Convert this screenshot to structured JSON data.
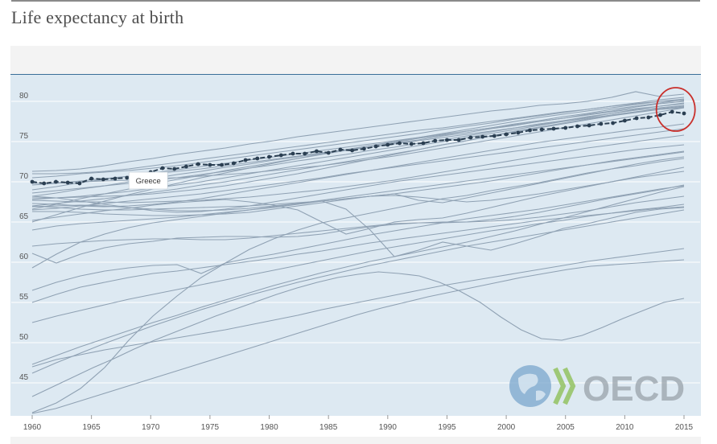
{
  "title": "Life expectancy at birth",
  "logo_text": "OECD",
  "chart_data": {
    "type": "line",
    "title": "Life expectancy at birth",
    "xlabel": "",
    "ylabel": "",
    "xlim": [
      1960,
      2015
    ],
    "ylim": [
      41,
      83
    ],
    "x_ticks": [
      1960,
      1965,
      1970,
      1975,
      1980,
      1985,
      1990,
      1995,
      2000,
      2005,
      2010,
      2015
    ],
    "y_ticks": [
      45,
      50,
      55,
      60,
      65,
      70,
      75,
      80
    ],
    "grid": true,
    "highlight_color": "#2b3f52",
    "background_color": "#dde9f2",
    "line_color": "#8fa1b3",
    "annotation_circle_color": "#c9302c",
    "highlight_label": "Greece",
    "highlight": {
      "x": [
        1960,
        1961,
        1962,
        1963,
        1964,
        1965,
        1966,
        1967,
        1968,
        1969,
        1970,
        1971,
        1972,
        1973,
        1974,
        1975,
        1976,
        1977,
        1978,
        1979,
        1980,
        1981,
        1982,
        1983,
        1984,
        1985,
        1986,
        1987,
        1988,
        1989,
        1990,
        1991,
        1992,
        1993,
        1994,
        1995,
        1996,
        1997,
        1998,
        1999,
        2000,
        2001,
        2002,
        2003,
        2004,
        2005,
        2006,
        2007,
        2008,
        2009,
        2010,
        2011,
        2012,
        2013,
        2014,
        2015
      ],
      "values": [
        70.0,
        69.8,
        70.0,
        69.9,
        69.8,
        70.4,
        70.3,
        70.4,
        70.5,
        70.9,
        71.2,
        71.7,
        71.6,
        71.9,
        72.2,
        72.1,
        72.1,
        72.3,
        72.7,
        72.9,
        73.1,
        73.3,
        73.5,
        73.5,
        73.8,
        73.6,
        74.0,
        73.9,
        74.1,
        74.4,
        74.6,
        74.8,
        74.7,
        74.8,
        75.1,
        75.2,
        75.2,
        75.5,
        75.6,
        75.7,
        75.9,
        76.1,
        76.4,
        76.5,
        76.6,
        76.7,
        76.9,
        77.0,
        77.2,
        77.3,
        77.6,
        77.9,
        78.0,
        78.3,
        78.7,
        78.5
      ]
    },
    "series": [
      {
        "values": [
          71.3,
          71.4,
          71.6,
          72.0,
          72.5,
          72.9,
          73.4,
          73.8,
          74.2,
          74.7,
          75.1,
          75.6,
          76.0,
          76.4,
          76.8,
          77.2,
          77.6,
          78.0,
          78.4,
          78.8,
          79.1,
          79.5,
          79.7,
          80.0,
          80.5,
          81.2,
          80.6,
          80.9
        ]
      },
      {
        "values": [
          71.0,
          71.0,
          71.1,
          71.3,
          71.6,
          72.0,
          72.4,
          72.8,
          73.2,
          73.6,
          74.0,
          74.4,
          74.8,
          75.2,
          75.6,
          76.0,
          76.4,
          76.7,
          77.1,
          77.5,
          77.9,
          78.3,
          78.7,
          79.0,
          79.4,
          79.7,
          80.0,
          80.1
        ]
      },
      {
        "values": [
          70.5,
          70.7,
          71.0,
          71.2,
          71.4,
          71.7,
          72.0,
          72.4,
          72.8,
          73.2,
          73.6,
          74.0,
          74.4,
          74.8,
          75.2,
          75.6,
          76.0,
          76.5,
          76.9,
          77.3,
          77.8,
          78.2,
          78.6,
          79.0,
          79.4,
          79.8,
          80.2,
          80.5
        ]
      },
      {
        "values": [
          69.0,
          69.4,
          69.9,
          70.3,
          70.7,
          71.1,
          71.5,
          71.9,
          72.3,
          72.7,
          73.1,
          73.5,
          73.9,
          74.3,
          74.7,
          75.1,
          75.5,
          75.9,
          76.3,
          76.7,
          77.1,
          77.5,
          77.9,
          78.3,
          78.7,
          79.1,
          79.4,
          79.7
        ]
      },
      {
        "values": [
          69.6,
          69.8,
          70.1,
          70.4,
          70.7,
          71.0,
          71.3,
          71.6,
          72.0,
          72.4,
          72.8,
          73.2,
          73.6,
          74.0,
          74.3,
          74.7,
          75.1,
          75.5,
          75.9,
          76.3,
          76.7,
          77.1,
          77.5,
          77.9,
          78.3,
          78.7,
          79.0,
          79.3
        ]
      },
      {
        "values": [
          68.2,
          68.6,
          69.1,
          69.5,
          70.0,
          70.4,
          70.9,
          71.3,
          71.8,
          72.2,
          72.7,
          73.1,
          73.6,
          74.0,
          74.5,
          74.9,
          75.4,
          75.8,
          76.3,
          76.7,
          77.2,
          77.6,
          78.1,
          78.5,
          79.0,
          79.4,
          79.8,
          80.2
        ]
      },
      {
        "values": [
          68.6,
          68.9,
          69.2,
          69.5,
          69.8,
          70.2,
          70.5,
          70.9,
          71.3,
          71.7,
          72.1,
          72.6,
          73.0,
          73.4,
          73.9,
          74.3,
          74.8,
          75.2,
          75.7,
          76.2,
          76.7,
          77.2,
          77.6,
          78.1,
          78.5,
          78.9,
          79.2,
          79.5
        ]
      },
      {
        "values": [
          69.8,
          69.9,
          70.0,
          70.1,
          70.2,
          70.4,
          70.5,
          70.7,
          70.9,
          71.1,
          71.4,
          71.7,
          72.0,
          72.4,
          72.8,
          73.2,
          73.7,
          74.2,
          74.7,
          75.2,
          75.7,
          76.2,
          76.7,
          77.2,
          77.7,
          78.2,
          78.7,
          79.2
        ]
      },
      {
        "values": [
          66.6,
          67.2,
          67.9,
          68.5,
          69.1,
          69.7,
          70.3,
          70.8,
          71.4,
          71.9,
          72.4,
          72.9,
          73.4,
          73.9,
          74.3,
          74.8,
          75.2,
          75.7,
          76.1,
          76.6,
          77.0,
          77.5,
          77.9,
          78.4,
          78.8,
          79.3,
          79.7,
          80.0
        ]
      },
      {
        "values": [
          67.8,
          68.0,
          68.2,
          68.5,
          68.8,
          69.2,
          69.6,
          70.0,
          70.5,
          71.0,
          71.5,
          72.0,
          72.5,
          73.0,
          73.5,
          74.0,
          74.5,
          75.0,
          75.5,
          76.0,
          76.5,
          77.0,
          77.5,
          78.0,
          78.5,
          79.0,
          79.4,
          79.8
        ]
      },
      {
        "values": [
          67.0,
          67.3,
          67.6,
          67.9,
          68.3,
          68.7,
          69.1,
          69.6,
          70.0,
          70.5,
          71.0,
          71.5,
          72.0,
          72.5,
          73.0,
          73.5,
          74.0,
          74.6,
          75.1,
          75.7,
          76.2,
          76.7,
          77.2,
          77.7,
          78.2,
          78.6,
          79.0,
          79.2
        ]
      },
      {
        "values": [
          65.0,
          65.9,
          66.8,
          67.6,
          68.4,
          69.1,
          69.8,
          70.5,
          71.1,
          71.7,
          72.3,
          72.9,
          73.5,
          74.0,
          74.5,
          75.0,
          75.5,
          76.0,
          76.5,
          77.0,
          77.5,
          78.0,
          78.4,
          78.8,
          79.2,
          79.6,
          80.0,
          80.3
        ]
      },
      {
        "values": [
          68.0,
          68.0,
          68.1,
          68.2,
          68.3,
          68.5,
          68.8,
          69.1,
          69.5,
          70.0,
          70.5,
          71.0,
          71.6,
          72.2,
          72.8,
          73.4,
          74.0,
          74.6,
          75.1,
          75.7,
          76.3,
          76.8,
          77.3,
          77.8,
          78.3,
          78.7,
          79.1,
          79.4
        ]
      },
      {
        "values": [
          66.5,
          66.7,
          67.0,
          67.3,
          67.6,
          67.9,
          68.2,
          68.5,
          68.9,
          69.3,
          69.7,
          70.1,
          70.5,
          71.0,
          71.4,
          71.9,
          72.4,
          72.9,
          73.4,
          73.9,
          74.4,
          74.9,
          75.3,
          75.7,
          76.1,
          76.5,
          76.8,
          77.2
        ]
      },
      {
        "values": [
          67.3,
          67.2,
          67.0,
          66.9,
          67.0,
          67.2,
          67.5,
          67.9,
          68.4,
          68.9,
          69.4,
          69.9,
          70.4,
          70.9,
          71.4,
          71.8,
          72.2,
          72.6,
          73.0,
          73.4,
          73.8,
          74.2,
          74.6,
          75.0,
          75.4,
          75.8,
          76.2,
          76.6
        ]
      },
      {
        "values": [
          67.7,
          67.6,
          67.5,
          67.5,
          67.4,
          67.5,
          67.6,
          67.7,
          67.9,
          68.1,
          68.4,
          68.7,
          69.0,
          69.4,
          69.8,
          70.2,
          70.7,
          71.2,
          71.7,
          72.2,
          72.7,
          73.2,
          73.7,
          74.2,
          74.6,
          75.0,
          75.4,
          75.8
        ]
      },
      {
        "values": [
          67.0,
          66.8,
          66.6,
          66.5,
          66.5,
          66.6,
          66.7,
          66.8,
          66.9,
          67.0,
          67.2,
          67.4,
          67.6,
          67.9,
          68.2,
          68.5,
          68.9,
          69.3,
          69.7,
          70.1,
          70.6,
          71.1,
          71.6,
          72.1,
          72.6,
          73.0,
          73.4,
          73.8
        ]
      },
      {
        "values": [
          68.2,
          68.0,
          67.6,
          67.2,
          66.8,
          66.4,
          66.2,
          66.3,
          66.6,
          67.0,
          67.5,
          68.0,
          68.5,
          69.0,
          69.5,
          70.0,
          70.4,
          70.8,
          71.2,
          71.6,
          72.0,
          72.4,
          72.8,
          73.2,
          73.6,
          74.0,
          74.3,
          74.6
        ]
      },
      {
        "values": [
          66.3,
          66.3,
          66.2,
          66.0,
          65.9,
          65.8,
          65.8,
          65.9,
          66.0,
          66.2,
          66.6,
          67.0,
          67.4,
          67.8,
          68.2,
          68.5,
          67.7,
          67.4,
          68.0,
          68.6,
          69.2,
          69.8,
          70.4,
          71.0,
          71.6,
          72.2,
          72.7,
          73.1
        ]
      },
      {
        "values": [
          65.2,
          65.6,
          66.0,
          66.4,
          66.7,
          67.1,
          67.4,
          67.6,
          67.8,
          67.5,
          67.1,
          66.5,
          65.0,
          63.5,
          64.2,
          65.0,
          65.3,
          65.5,
          66.1,
          66.8,
          67.5,
          68.2,
          68.8,
          69.4,
          70.0,
          70.6,
          71.2,
          71.8
        ]
      },
      {
        "values": [
          66.9,
          67.0,
          67.1,
          67.0,
          66.8,
          66.6,
          66.4,
          66.4,
          66.5,
          66.7,
          67.0,
          67.3,
          67.6,
          67.9,
          68.2,
          68.3,
          68.1,
          67.8,
          67.5,
          67.7,
          68.1,
          68.5,
          69.0,
          69.5,
          70.0,
          70.5,
          70.9,
          71.3
        ]
      },
      {
        "values": [
          59.3,
          61.0,
          62.5,
          63.5,
          64.3,
          64.9,
          65.3,
          65.7,
          66.1,
          66.5,
          66.9,
          67.3,
          67.7,
          68.1,
          68.5,
          68.9,
          69.3,
          69.7,
          70.1,
          70.5,
          70.9,
          71.3,
          71.7,
          72.1,
          72.5,
          72.9,
          73.3,
          73.7
        ]
      },
      {
        "values": [
          61.1,
          59.9,
          61.0,
          61.8,
          62.3,
          62.6,
          63.0,
          63.1,
          63.2,
          63.2,
          63.1,
          63.2,
          63.5,
          64.0,
          64.4,
          64.7,
          64.9,
          65.0,
          65.0,
          65.1,
          65.3,
          65.6,
          66.0,
          66.4,
          66.9,
          67.4,
          67.8,
          68.2
        ]
      },
      {
        "values": [
          62.0,
          62.3,
          62.5,
          62.7,
          62.8,
          62.9,
          62.9,
          62.8,
          62.8,
          63.0,
          63.3,
          63.6,
          63.9,
          64.2,
          64.5,
          64.8,
          64.9,
          64.9,
          65.0,
          65.3,
          65.7,
          66.2,
          66.8,
          67.4,
          68.0,
          68.5,
          69.0,
          69.6
        ]
      },
      {
        "values": [
          64.0,
          64.5,
          64.8,
          65.0,
          65.2,
          65.4,
          65.6,
          65.9,
          66.2,
          66.5,
          66.8,
          67.2,
          67.6,
          66.6,
          64.0,
          60.7,
          61.5,
          62.5,
          62.0,
          61.5,
          62.3,
          63.2,
          64.2,
          64.8,
          65.5,
          66.2,
          66.6,
          66.8
        ]
      },
      {
        "values": [
          55.0,
          56.0,
          56.9,
          57.5,
          58.1,
          58.6,
          58.9,
          59.3,
          59.7,
          60.1,
          60.5,
          61.0,
          61.4,
          61.9,
          62.4,
          62.8,
          63.2,
          63.6,
          64.0,
          64.4,
          64.8,
          65.2,
          65.5,
          65.8,
          66.1,
          66.4,
          66.7,
          66.9
        ]
      },
      {
        "values": [
          56.5,
          57.5,
          58.3,
          58.9,
          59.3,
          59.6,
          59.7,
          58.6,
          59.9,
          60.5,
          61.0,
          61.6,
          62.2,
          62.8,
          63.4,
          63.9,
          64.4,
          64.9,
          65.4,
          65.8,
          66.2,
          66.6,
          67.1,
          67.6,
          68.1,
          68.6,
          69.1,
          69.5
        ]
      },
      {
        "values": [
          52.5,
          53.3,
          54.0,
          54.7,
          55.4,
          56.0,
          56.6,
          57.2,
          57.8,
          58.4,
          59.0,
          59.6,
          60.2,
          60.8,
          61.4,
          61.9,
          62.4,
          62.9,
          63.4,
          63.9,
          64.3,
          64.8,
          65.2,
          65.7,
          66.1,
          66.5,
          66.8,
          67.2
        ]
      },
      {
        "values": [
          47.3,
          48.4,
          49.5,
          50.5,
          51.5,
          52.5,
          53.4,
          54.4,
          55.3,
          56.2,
          57.1,
          57.9,
          58.7,
          59.4,
          60.1,
          60.7,
          61.3,
          61.9,
          62.5,
          63.2,
          63.9,
          64.7,
          65.5,
          66.3,
          67.1,
          67.9,
          68.7,
          69.4
        ]
      },
      {
        "values": [
          46.2,
          47.5,
          48.7,
          49.9,
          51.0,
          52.1,
          53.1,
          54.1,
          55.0,
          55.9,
          56.7,
          57.5,
          58.2,
          58.9,
          59.6,
          60.2,
          60.8,
          61.4,
          62.0,
          62.5,
          63.0,
          63.5,
          64.0,
          64.5,
          65.0,
          65.5,
          66.0,
          66.5
        ]
      },
      {
        "values": [
          47.0,
          47.9,
          48.5,
          49.1,
          49.6,
          50.1,
          50.6,
          51.1,
          51.6,
          52.2,
          52.8,
          53.4,
          54.1,
          54.7,
          55.3,
          55.9,
          56.5,
          57.1,
          57.6,
          58.1,
          58.6,
          59.1,
          59.6,
          60.1,
          60.5,
          60.9,
          61.3,
          61.7
        ]
      },
      {
        "values": [
          41.3,
          42.5,
          44.3,
          46.9,
          50.3,
          53.3,
          55.8,
          58.1,
          59.9,
          61.6,
          62.9,
          64.0,
          64.9,
          65.5,
          66.1,
          66.7,
          67.3,
          67.9,
          68.3,
          68.9,
          69.4,
          69.9,
          70.5,
          71.1,
          71.6,
          72.0,
          72.5,
          72.9
        ]
      },
      {
        "values": [
          41.2,
          41.8,
          42.7,
          43.6,
          44.5,
          45.4,
          46.3,
          47.2,
          48.1,
          49.0,
          49.9,
          50.8,
          51.7,
          52.6,
          53.5,
          54.3,
          55.0,
          55.7,
          56.3,
          56.9,
          57.5,
          58.1,
          58.6,
          59.1,
          59.5,
          59.7,
          59.9,
          60.1,
          60.3
        ]
      },
      {
        "values": [
          43.3,
          44.5,
          45.7,
          46.9,
          48.0,
          49.2,
          50.3,
          51.3,
          52.3,
          53.3,
          54.2,
          55.1,
          56.0,
          56.8,
          57.5,
          58.1,
          58.5,
          58.8,
          58.6,
          58.3,
          57.5,
          56.4,
          55.0,
          53.2,
          51.6,
          50.5,
          50.3,
          50.9,
          51.9,
          53.0,
          54.0,
          55.0,
          55.5
        ]
      }
    ]
  }
}
